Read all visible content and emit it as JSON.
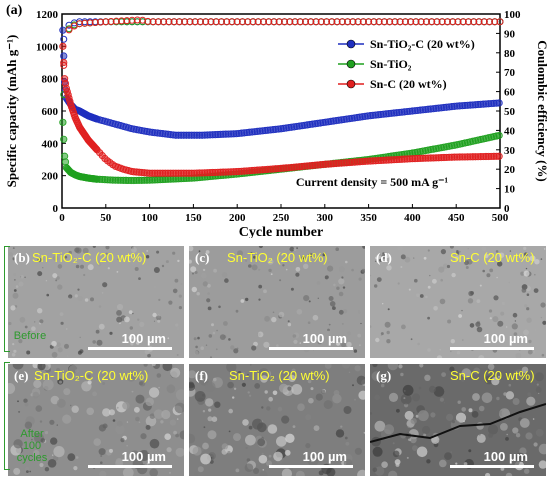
{
  "chart_data": {
    "type": "scatter",
    "panel_label": "(a)",
    "xlabel": "Cycle number",
    "ylabel_left": "Specific capacity (mAh g⁻¹)",
    "ylabel_right": "Coulombic efficiency (%)",
    "xlim": [
      0,
      500
    ],
    "ylim_left": [
      0,
      1200
    ],
    "ylim_right": [
      0,
      100
    ],
    "xticks": [
      0,
      50,
      100,
      150,
      200,
      250,
      300,
      350,
      400,
      450,
      500
    ],
    "yticks_left": [
      0,
      200,
      400,
      600,
      800,
      1000,
      1200
    ],
    "yticks_right": [
      0,
      10,
      20,
      30,
      40,
      50,
      60,
      70,
      80,
      90,
      100
    ],
    "annotation": "Current density = 500 mA g⁻¹",
    "legend_position": "top-right",
    "series": [
      {
        "name": "Sn-TiO₂-C (20 wt%)",
        "color": "#1f2fbf",
        "x": [
          1,
          3,
          5,
          10,
          15,
          20,
          30,
          40,
          60,
          80,
          100,
          130,
          160,
          200,
          250,
          300,
          350,
          400,
          450,
          500
        ],
        "y": [
          1100,
          780,
          680,
          640,
          610,
          600,
          570,
          550,
          520,
          490,
          470,
          450,
          450,
          460,
          490,
          530,
          570,
          600,
          630,
          650
        ],
        "ce_x": [
          1,
          5,
          10,
          20,
          50,
          100,
          200,
          300,
          400,
          500
        ],
        "ce_y": [
          85,
          93,
          95,
          96,
          96,
          96,
          96,
          96,
          96,
          96
        ]
      },
      {
        "name": "Sn-TiO₂",
        "color": "#1fa01f",
        "x": [
          1,
          3,
          5,
          10,
          15,
          20,
          30,
          40,
          60,
          80,
          100,
          150,
          200,
          250,
          300,
          350,
          400,
          450,
          500
        ],
        "y": [
          530,
          320,
          250,
          220,
          205,
          195,
          185,
          178,
          172,
          170,
          172,
          185,
          210,
          240,
          270,
          300,
          340,
          390,
          450
        ],
        "ce_x": [
          1,
          5,
          10,
          20,
          50,
          100,
          200,
          300,
          400,
          500
        ],
        "ce_y": [
          48,
          90,
          94,
          95,
          96,
          96,
          96,
          96,
          96,
          96
        ]
      },
      {
        "name": "Sn-C (20 wt%)",
        "color": "#e01f1f",
        "x": [
          1,
          3,
          5,
          10,
          15,
          20,
          30,
          40,
          50,
          60,
          70,
          80,
          100,
          150,
          200,
          250,
          300,
          350,
          400,
          450,
          500
        ],
        "y": [
          1000,
          800,
          740,
          640,
          560,
          500,
          420,
          360,
          300,
          260,
          240,
          225,
          215,
          215,
          225,
          245,
          270,
          290,
          305,
          315,
          320
        ],
        "ce_x": [
          1,
          5,
          10,
          20,
          50,
          90,
          100,
          200,
          300,
          400,
          500
        ],
        "ce_y": [
          68,
          90,
          93,
          95,
          96,
          97,
          96,
          96,
          96,
          96,
          96
        ]
      }
    ]
  },
  "sem_panels": [
    {
      "label": "(b)",
      "sample": "Sn-TiO₂-C (20 wt%)",
      "scale": "100 µm",
      "tone": "#a2a2a2"
    },
    {
      "label": "(c)",
      "sample": "Sn-TiO₂ (20 wt%)",
      "scale": "100 µm",
      "tone": "#9c9c9c"
    },
    {
      "label": "(d)",
      "sample": "Sn-C (20 wt%)",
      "scale": "100 µm",
      "tone": "#a8a8a8"
    },
    {
      "label": "(e)",
      "sample": "Sn-TiO₂-C (20 wt%)",
      "scale": "100 µm",
      "tone": "#8e8e8e"
    },
    {
      "label": "(f)",
      "sample": "Sn-TiO₂ (20 wt%)",
      "scale": "100 µm",
      "tone": "#7e7e7e"
    },
    {
      "label": "(g)",
      "sample": "Sn-C (20 wt%)",
      "scale": "100 µm",
      "tone": "#6a6a6a"
    }
  ],
  "row_labels": {
    "top": "Before",
    "bottom": "After 100 cycles"
  }
}
